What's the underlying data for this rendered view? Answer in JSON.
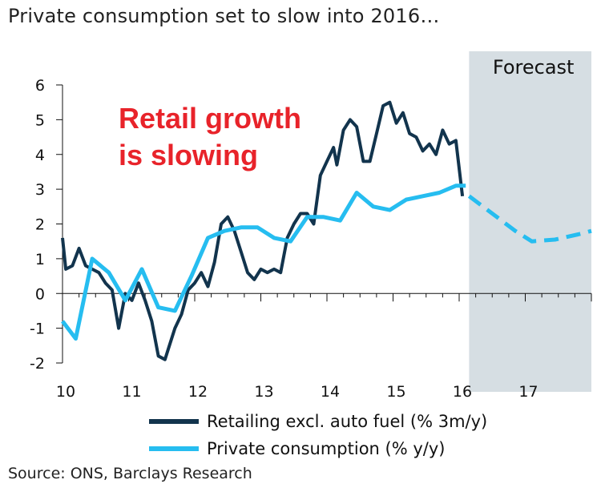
{
  "title": "Private consumption set to slow into 2016…",
  "source": "Source: ONS, Barclays Research",
  "forecast_label": "Forecast",
  "annotation_lines": [
    "Retail growth",
    "is slowing"
  ],
  "colors": {
    "retail": "#12344d",
    "consumption": "#26bdf0",
    "forecast_band": "#d6dee3",
    "annotation": "#e8232a"
  },
  "chart_data": {
    "type": "line",
    "title": "Private consumption set to slow into 2016…",
    "xlabel": "",
    "ylabel": "",
    "x_ticks": [
      "10",
      "11",
      "12",
      "13",
      "14",
      "15",
      "16",
      "17"
    ],
    "y_ticks": [
      "6",
      "5",
      "4",
      "3",
      "2",
      "1",
      "0",
      "-1",
      "-2"
    ],
    "xlim": [
      2010,
      2018
    ],
    "ylim": [
      -2,
      6
    ],
    "forecast_region": [
      2016.15,
      2018
    ],
    "grid": false,
    "legend_position": "bottom",
    "series": [
      {
        "name": "Retailing excl. auto fuel (% 3m/y)",
        "style": "solid",
        "x": [
          2010.0,
          2010.05,
          2010.15,
          2010.25,
          2010.35,
          2010.45,
          2010.55,
          2010.65,
          2010.75,
          2010.85,
          2010.95,
          2011.05,
          2011.15,
          2011.25,
          2011.35,
          2011.45,
          2011.55,
          2011.6,
          2011.7,
          2011.8,
          2011.9,
          2012.0,
          2012.1,
          2012.2,
          2012.3,
          2012.4,
          2012.5,
          2012.6,
          2012.7,
          2012.8,
          2012.9,
          2013.0,
          2013.1,
          2013.2,
          2013.3,
          2013.4,
          2013.5,
          2013.6,
          2013.7,
          2013.8,
          2013.9,
          2014.0,
          2014.1,
          2014.15,
          2014.25,
          2014.35,
          2014.45,
          2014.55,
          2014.65,
          2014.75,
          2014.85,
          2014.95,
          2015.05,
          2015.15,
          2015.25,
          2015.35,
          2015.45,
          2015.55,
          2015.65,
          2015.75,
          2015.85,
          2015.95,
          2016.05
        ],
        "y": [
          1.6,
          0.7,
          0.8,
          1.3,
          0.8,
          0.7,
          0.6,
          0.3,
          0.1,
          -1.0,
          0.0,
          -0.2,
          0.3,
          -0.2,
          -0.8,
          -1.8,
          -1.9,
          -1.6,
          -1.0,
          -0.6,
          0.1,
          0.3,
          0.6,
          0.2,
          0.9,
          2.0,
          2.2,
          1.8,
          1.2,
          0.6,
          0.4,
          0.7,
          0.6,
          0.7,
          0.6,
          1.6,
          2.0,
          2.3,
          2.3,
          2.0,
          3.4,
          3.8,
          4.2,
          3.7,
          4.7,
          5.0,
          4.8,
          3.8,
          3.8,
          4.6,
          5.4,
          5.5,
          4.9,
          5.2,
          4.6,
          4.5,
          4.1,
          4.3,
          4.0,
          4.7,
          4.3,
          4.4,
          2.8
        ]
      },
      {
        "name": "Private consumption (% y/y)",
        "style": "solid",
        "x": [
          2010.0,
          2010.2,
          2010.45,
          2010.7,
          2010.95,
          2011.2,
          2011.45,
          2011.7,
          2011.95,
          2012.2,
          2012.45,
          2012.7,
          2012.95,
          2013.2,
          2013.45,
          2013.7,
          2013.95,
          2014.2,
          2014.45,
          2014.7,
          2014.95,
          2015.2,
          2015.45,
          2015.7,
          2015.95,
          2016.1
        ],
        "y": [
          -0.8,
          -1.3,
          1.0,
          0.6,
          -0.2,
          0.7,
          -0.4,
          -0.5,
          0.5,
          1.6,
          1.8,
          1.9,
          1.9,
          1.6,
          1.5,
          2.2,
          2.2,
          2.1,
          2.9,
          2.5,
          2.4,
          2.7,
          2.8,
          2.9,
          3.1,
          3.1
        ]
      },
      {
        "name": "Private consumption forecast",
        "style": "dashed",
        "x": [
          2016.15,
          2016.5,
          2016.85,
          2017.1,
          2017.45,
          2017.8,
          2018.0
        ],
        "y": [
          2.8,
          2.3,
          1.8,
          1.5,
          1.55,
          1.7,
          1.8
        ]
      }
    ]
  },
  "legend": [
    {
      "label": "Retailing excl. auto fuel (% 3m/y)",
      "color": "#12344d"
    },
    {
      "label": "Private consumption (% y/y)",
      "color": "#26bdf0"
    }
  ]
}
